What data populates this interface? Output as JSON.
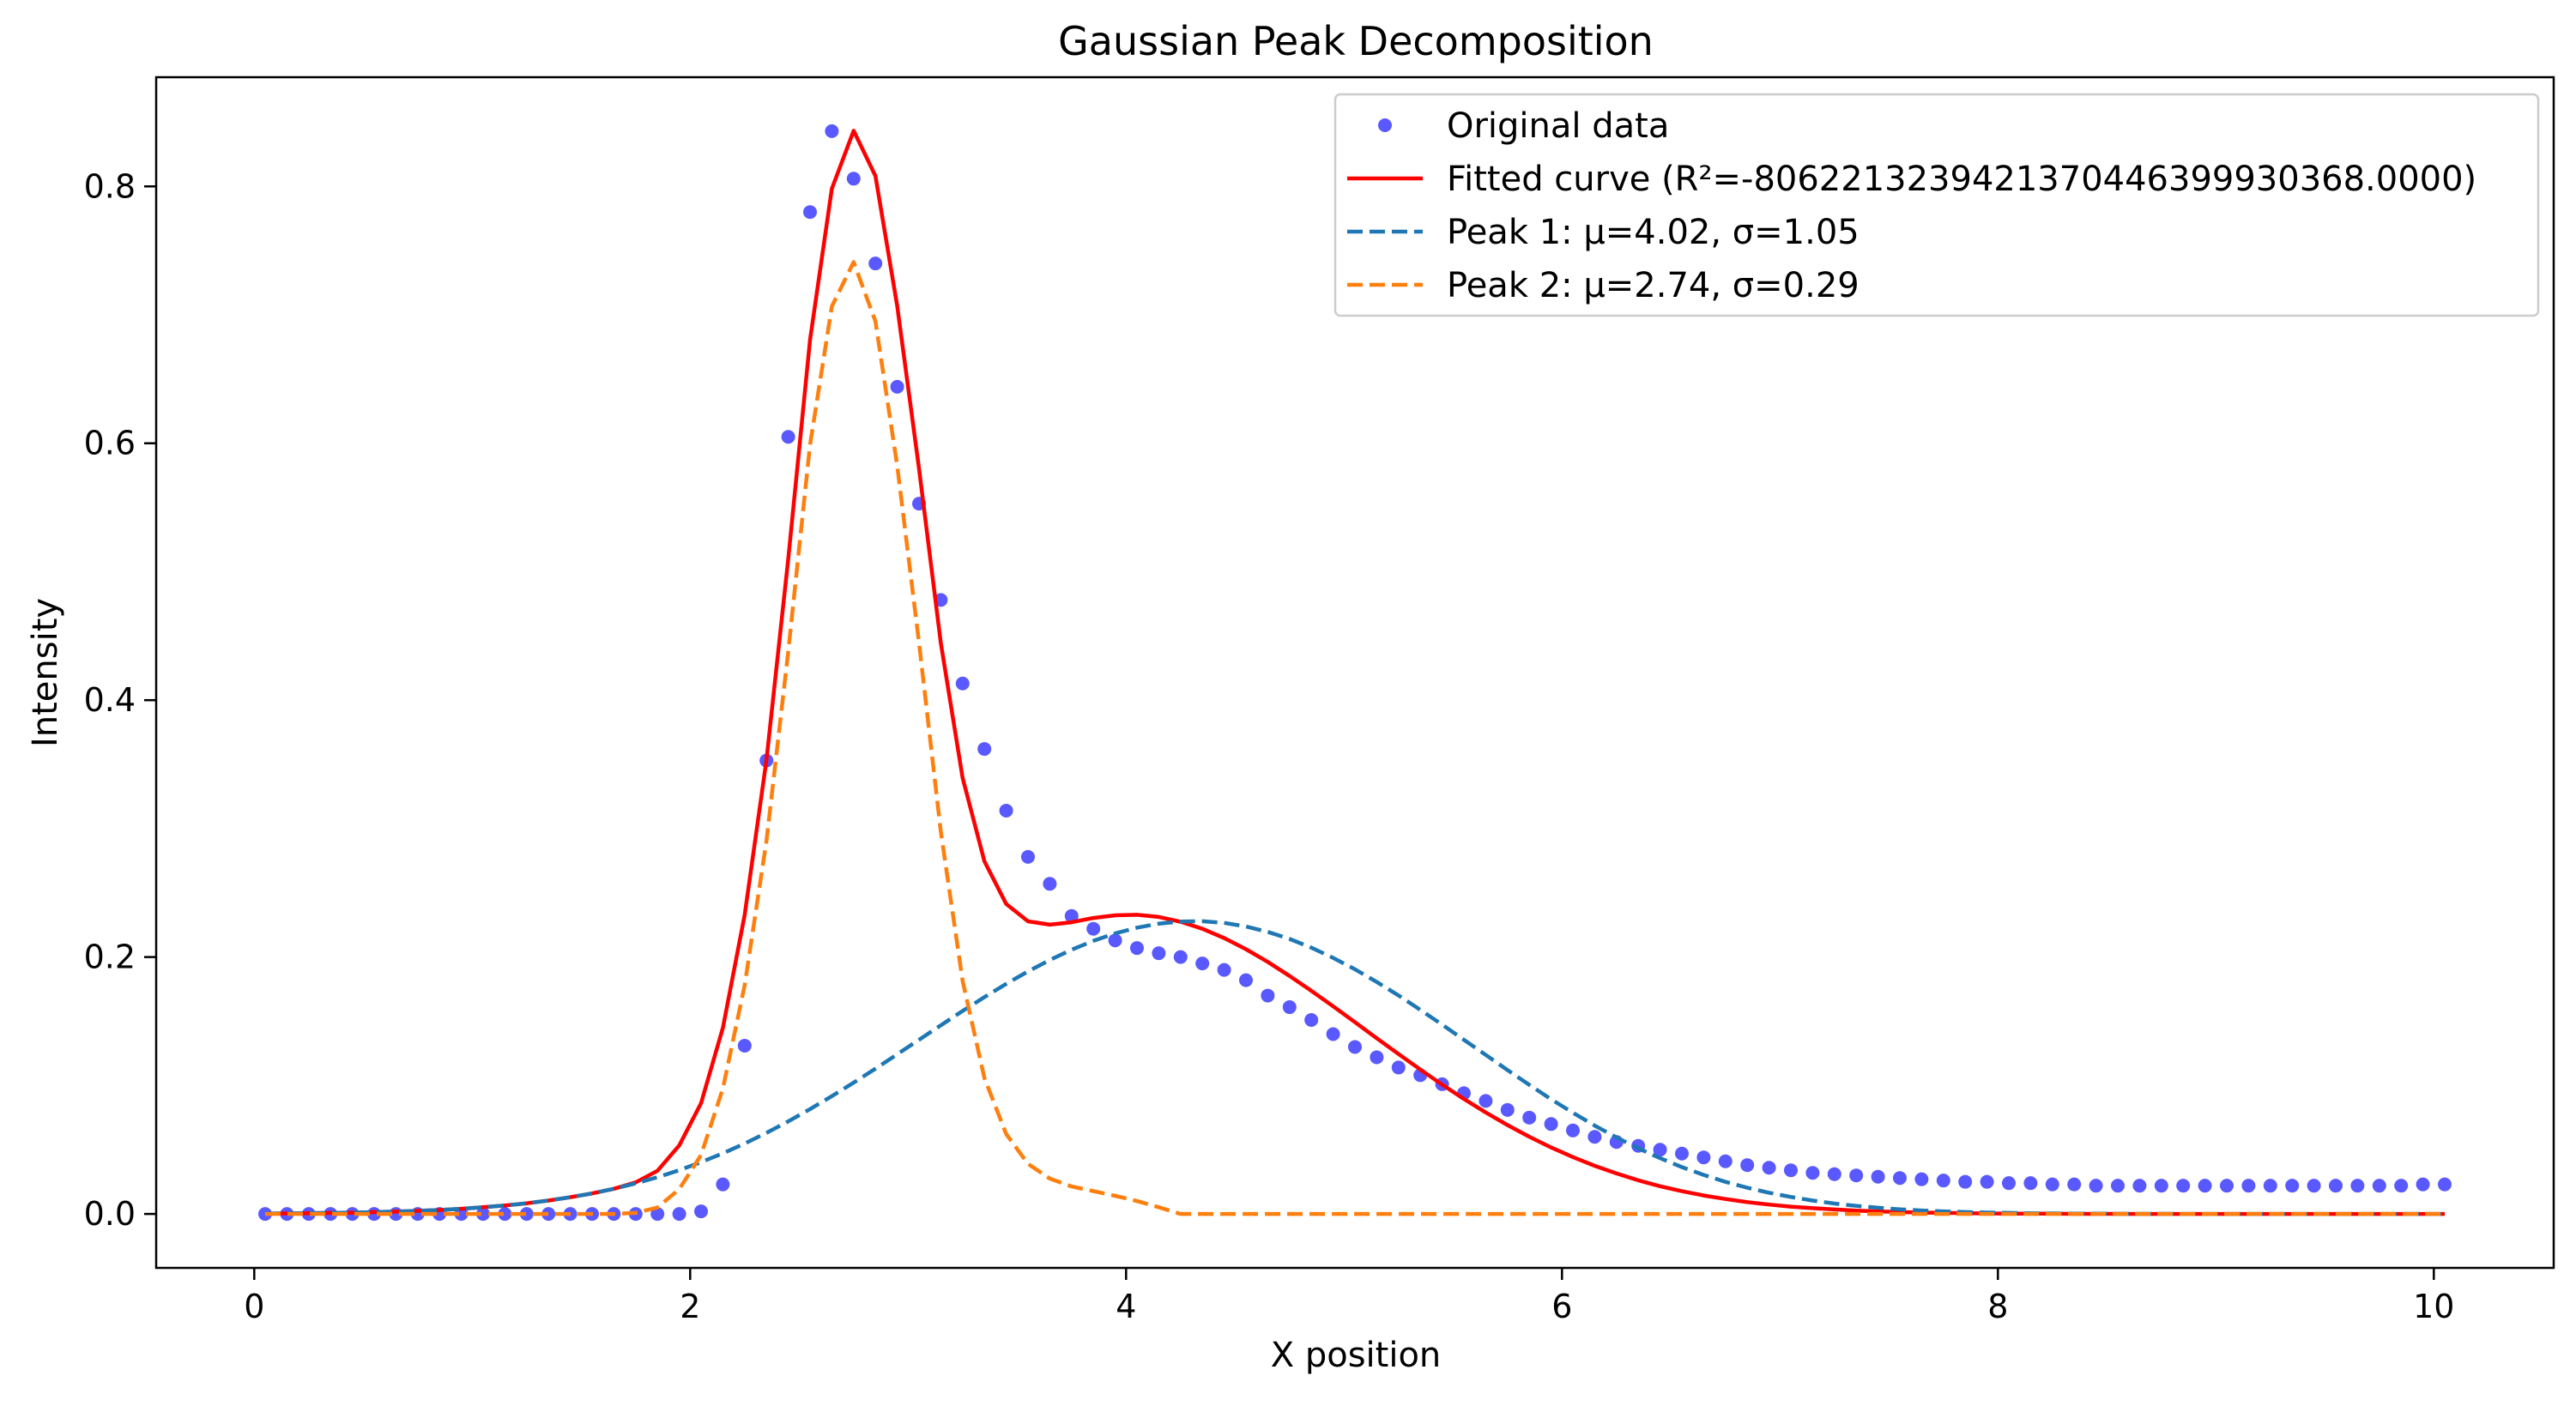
{
  "chart_data": {
    "type": "line",
    "title": "Gaussian Peak Decomposition",
    "xlabel": "X position",
    "ylabel": "Intensity",
    "xlim": [
      -0.45,
      10.55
    ],
    "ylim": [
      -0.042,
      0.885
    ],
    "xticks": [
      0,
      2,
      4,
      6,
      8,
      10
    ],
    "yticks": [
      0.0,
      0.2,
      0.4,
      0.6,
      0.8
    ],
    "xtick_labels": [
      "0",
      "2",
      "4",
      "6",
      "8",
      "10"
    ],
    "ytick_labels": [
      "0.0",
      "0.2",
      "0.4",
      "0.6",
      "0.8"
    ],
    "grid": false,
    "legend_position": "top-right",
    "series": [
      {
        "name": "Original data",
        "style": "scatter",
        "color": "#0000ff",
        "x": [
          0.05,
          0.15,
          0.25,
          0.35,
          0.45,
          0.55,
          0.65,
          0.75,
          0.85,
          0.95,
          1.05,
          1.15,
          1.25,
          1.35,
          1.45,
          1.55,
          1.65,
          1.75,
          1.85,
          1.95,
          2.05,
          2.15,
          2.25,
          2.35,
          2.45,
          2.55,
          2.65,
          2.75,
          2.85,
          2.95,
          3.05,
          3.15,
          3.25,
          3.35,
          3.45,
          3.55,
          3.65,
          3.75,
          3.85,
          3.95,
          4.05,
          4.15,
          4.25,
          4.35,
          4.45,
          4.55,
          4.65,
          4.75,
          4.85,
          4.95,
          5.05,
          5.15,
          5.25,
          5.35,
          5.45,
          5.55,
          5.65,
          5.75,
          5.85,
          5.95,
          6.05,
          6.15,
          6.25,
          6.35,
          6.45,
          6.55,
          6.65,
          6.75,
          6.85,
          6.95,
          7.05,
          7.15,
          7.25,
          7.35,
          7.45,
          7.55,
          7.65,
          7.75,
          7.85,
          7.95,
          8.05,
          8.15,
          8.25,
          8.35,
          8.45,
          8.55,
          8.65,
          8.75,
          8.85,
          8.95,
          9.05,
          9.15,
          9.25,
          9.35,
          9.45,
          9.55,
          9.65,
          9.75,
          9.85,
          9.95,
          10.05
        ],
        "y": [
          0.0,
          0.0,
          0.0,
          0.0,
          0.0,
          0.0,
          0.0,
          0.0,
          0.0,
          0.0,
          0.0,
          0.0,
          0.0,
          0.0,
          0.0,
          0.0,
          0.0,
          0.0,
          0.0,
          0.0,
          0.002,
          0.023,
          0.131,
          0.353,
          0.605,
          0.78,
          0.843,
          0.806,
          0.74,
          0.644,
          0.553,
          0.478,
          0.413,
          0.362,
          0.314,
          0.278,
          0.257,
          0.232,
          0.222,
          0.213,
          0.207,
          0.203,
          0.2,
          0.195,
          0.19,
          0.182,
          0.17,
          0.161,
          0.151,
          0.14,
          0.13,
          0.122,
          0.114,
          0.108,
          0.101,
          0.094,
          0.088,
          0.081,
          0.075,
          0.07,
          0.065,
          0.06,
          0.056,
          0.053,
          0.05,
          0.047,
          0.044,
          0.041,
          0.038,
          0.036,
          0.034,
          0.032,
          0.031,
          0.03,
          0.029,
          0.028,
          0.027,
          0.026,
          0.025,
          0.025,
          0.024,
          0.024,
          0.023,
          0.023,
          0.022,
          0.022,
          0.022,
          0.022,
          0.022,
          0.022,
          0.022,
          0.022,
          0.022,
          0.022,
          0.022,
          0.022,
          0.022,
          0.022,
          0.022,
          0.023,
          0.023
        ]
      },
      {
        "name": "Fitted curve (R²=-8062213239421370446399930368.0000)",
        "style": "solid",
        "color": "#ff0000",
        "x": [
          0.05,
          0.15,
          0.25,
          0.35,
          0.45,
          0.55,
          0.65,
          0.75,
          0.85,
          0.95,
          1.05,
          1.15,
          1.25,
          1.35,
          1.45,
          1.55,
          1.65,
          1.75,
          1.85,
          1.95,
          2.05,
          2.15,
          2.25,
          2.35,
          2.45,
          2.55,
          2.65,
          2.75,
          2.85,
          2.95,
          3.05,
          3.15,
          3.25,
          3.35,
          3.45,
          3.55,
          3.65,
          3.75,
          3.85,
          3.95,
          4.05,
          4.15,
          4.25,
          4.35,
          4.45,
          4.55,
          4.65,
          4.75,
          4.85,
          4.95,
          5.05,
          5.15,
          5.25,
          5.35,
          5.45,
          5.55,
          5.65,
          5.75,
          5.85,
          5.95,
          6.05,
          6.15,
          6.25,
          6.35,
          6.45,
          6.55,
          6.65,
          6.75,
          6.85,
          6.95,
          7.05,
          7.15,
          7.25,
          7.35,
          7.45,
          7.55,
          7.65,
          7.75,
          7.85,
          7.95,
          8.05,
          8.15,
          8.25,
          8.35,
          8.45,
          8.55,
          8.65,
          8.75,
          8.85,
          8.95,
          9.05,
          9.15,
          9.25,
          9.35,
          9.45,
          9.55,
          9.65,
          9.75,
          9.85,
          9.95,
          10.05
        ],
        "y": [
          0.0003,
          0.0004,
          0.0006,
          0.0008,
          0.001,
          0.0014,
          0.0018,
          0.0024,
          0.0031,
          0.004,
          0.0052,
          0.0066,
          0.0083,
          0.0104,
          0.013,
          0.016,
          0.0196,
          0.0246,
          0.0336,
          0.0534,
          0.0862,
          0.1448,
          0.2327,
          0.3533,
          0.5099,
          0.6805,
          0.7982,
          0.8433,
          0.8081,
          0.7068,
          0.5803,
          0.4445,
          0.3395,
          0.2746,
          0.2413,
          0.2278,
          0.2252,
          0.2271,
          0.2304,
          0.2325,
          0.2329,
          0.2312,
          0.2275,
          0.222,
          0.2148,
          0.2061,
          0.1962,
          0.1853,
          0.1737,
          0.1616,
          0.1493,
          0.1368,
          0.1245,
          0.1124,
          0.1007,
          0.0895,
          0.079,
          0.0692,
          0.0601,
          0.0518,
          0.0443,
          0.0375,
          0.0315,
          0.0262,
          0.0216,
          0.0177,
          0.0144,
          0.0116,
          0.0092,
          0.0073,
          0.0057,
          0.0045,
          0.0035,
          0.0026,
          0.002,
          0.0015,
          0.0011,
          0.0008,
          0.0006,
          0.0004,
          0.0003,
          0.0002,
          0.0002,
          0.0001,
          0.0001,
          0.0001,
          0.0,
          0.0,
          0.0,
          0.0,
          0.0,
          0.0,
          0.0,
          0.0,
          0.0,
          0.0,
          0.0,
          0.0,
          0.0,
          0.0,
          0.0
        ]
      },
      {
        "name": "Peak 1: μ=4.02, σ=1.05",
        "style": "dashed",
        "color": "#1f77b4",
        "x": [
          0.05,
          0.15,
          0.25,
          0.35,
          0.45,
          0.55,
          0.65,
          0.75,
          0.85,
          0.95,
          1.05,
          1.15,
          1.25,
          1.35,
          1.45,
          1.55,
          1.65,
          1.75,
          1.85,
          1.95,
          2.05,
          2.15,
          2.25,
          2.35,
          2.45,
          2.55,
          2.65,
          2.75,
          2.85,
          2.95,
          3.05,
          3.15,
          3.25,
          3.35,
          3.45,
          3.55,
          3.65,
          3.75,
          3.85,
          3.95,
          4.05,
          4.15,
          4.25,
          4.35,
          4.45,
          4.55,
          4.65,
          4.75,
          4.85,
          4.95,
          5.05,
          5.15,
          5.25,
          5.35,
          5.45,
          5.55,
          5.65,
          5.75,
          5.85,
          5.95,
          6.05,
          6.15,
          6.25,
          6.35,
          6.45,
          6.55,
          6.65,
          6.75,
          6.85,
          6.95,
          7.05,
          7.15,
          7.25,
          7.35,
          7.45,
          7.55,
          7.65,
          7.75,
          7.85,
          7.95,
          8.05,
          8.15,
          8.25,
          8.35,
          8.45,
          8.55,
          8.65,
          8.75,
          8.85,
          8.95,
          9.05,
          9.15,
          9.25,
          9.35,
          9.45,
          9.55,
          9.65,
          9.75,
          9.85,
          9.95,
          10.05
        ],
        "y": [
          0.0003,
          0.0004,
          0.0006,
          0.0008,
          0.001,
          0.0014,
          0.0018,
          0.0024,
          0.0031,
          0.004,
          0.0052,
          0.0066,
          0.0083,
          0.0104,
          0.013,
          0.016,
          0.0196,
          0.0238,
          0.0286,
          0.0341,
          0.0403,
          0.0472,
          0.0548,
          0.0631,
          0.0721,
          0.0816,
          0.0917,
          0.1022,
          0.1131,
          0.1243,
          0.1356,
          0.1469,
          0.158,
          0.1688,
          0.1791,
          0.1888,
          0.1977,
          0.2057,
          0.2126,
          0.2184,
          0.2229,
          0.226,
          0.2277,
          0.2279,
          0.2266,
          0.2238,
          0.2196,
          0.2141,
          0.2073,
          0.1994,
          0.1905,
          0.1806,
          0.1701,
          0.1589,
          0.1474,
          0.1356,
          0.1238,
          0.112,
          0.1005,
          0.0893,
          0.0788,
          0.0688,
          0.0596,
          0.0511,
          0.0434,
          0.0365,
          0.0304,
          0.025,
          0.0204,
          0.0165,
          0.0132,
          0.0104,
          0.0081,
          0.0063,
          0.0048,
          0.0036,
          0.0027,
          0.002,
          0.0015,
          0.0011,
          0.0008,
          0.0005,
          0.0004,
          0.0003,
          0.0002,
          0.0001,
          0.0001,
          0.0001,
          0.0,
          0.0,
          0.0,
          0.0,
          0.0,
          0.0,
          0.0,
          0.0,
          0.0,
          0.0,
          0.0,
          0.0,
          0.0
        ]
      },
      {
        "name": "Peak 2: μ=2.74, σ=0.29",
        "style": "dashed",
        "color": "#ff7f0e",
        "x": [
          0.05,
          0.15,
          0.25,
          0.35,
          0.45,
          0.55,
          0.65,
          0.75,
          0.85,
          0.95,
          1.05,
          1.15,
          1.25,
          1.35,
          1.45,
          1.55,
          1.65,
          1.75,
          1.85,
          1.95,
          2.05,
          2.15,
          2.25,
          2.35,
          2.45,
          2.55,
          2.65,
          2.75,
          2.85,
          2.95,
          3.05,
          3.15,
          3.25,
          3.35,
          3.45,
          3.55,
          3.65,
          3.75,
          3.85,
          3.95,
          4.05,
          4.15,
          4.25,
          4.35,
          4.45,
          4.55,
          4.65,
          4.75,
          4.85,
          4.95,
          5.05,
          5.15,
          5.25,
          5.35,
          5.45,
          5.55,
          5.65,
          5.75,
          5.85,
          5.95,
          6.05,
          6.15,
          6.25,
          6.35,
          6.45,
          6.55,
          6.65,
          6.75,
          6.85,
          6.95,
          7.05,
          7.15,
          7.25,
          7.35,
          7.45,
          7.55,
          7.65,
          7.75,
          7.85,
          7.95,
          8.05,
          8.15,
          8.25,
          8.35,
          8.45,
          8.55,
          8.65,
          8.75,
          8.85,
          8.95,
          9.05,
          9.15,
          9.25,
          9.35,
          9.45,
          9.55,
          9.65,
          9.75,
          9.85,
          9.95,
          10.05
        ],
        "y": [
          0.0,
          0.0,
          0.0,
          0.0,
          0.0,
          0.0,
          0.0,
          0.0,
          0.0,
          0.0,
          0.0,
          0.0,
          0.0,
          0.0,
          0.0,
          0.0,
          0.0,
          0.0008,
          0.005,
          0.0193,
          0.0459,
          0.0976,
          0.1779,
          0.2902,
          0.4378,
          0.5989,
          0.7065,
          0.7411,
          0.695,
          0.5825,
          0.4447,
          0.2976,
          0.1815,
          0.1058,
          0.0622,
          0.039,
          0.0275,
          0.0214,
          0.0178,
          0.0141,
          0.01,
          0.0052,
          0.0,
          0.0,
          0.0,
          0.0,
          0.0,
          0.0,
          0.0,
          0.0,
          0.0,
          0.0,
          0.0,
          0.0,
          0.0,
          0.0,
          0.0,
          0.0,
          0.0,
          0.0,
          0.0,
          0.0,
          0.0,
          0.0,
          0.0,
          0.0,
          0.0,
          0.0,
          0.0,
          0.0,
          0.0,
          0.0,
          0.0,
          0.0,
          0.0,
          0.0,
          0.0,
          0.0,
          0.0,
          0.0,
          0.0,
          0.0,
          0.0,
          0.0,
          0.0,
          0.0,
          0.0,
          0.0,
          0.0,
          0.0,
          0.0,
          0.0,
          0.0,
          0.0,
          0.0,
          0.0,
          0.0,
          0.0,
          0.0,
          0.0,
          0.0
        ]
      }
    ]
  }
}
